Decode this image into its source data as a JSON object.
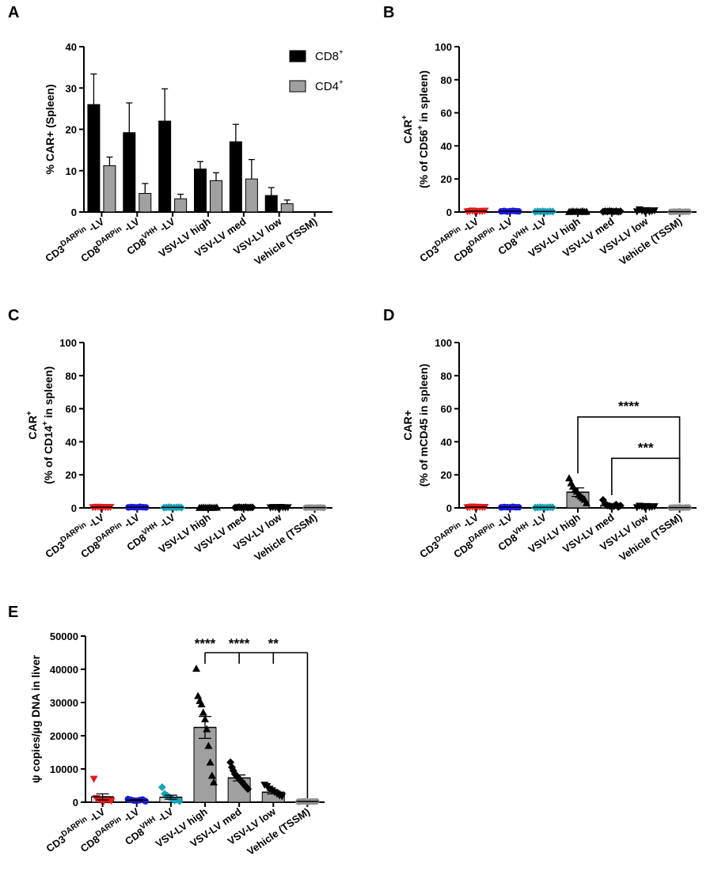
{
  "chart_data": [
    {
      "panel": "A",
      "type": "bar",
      "ylabel": "%  CAR+ (Spleen)",
      "ylim": [
        0,
        40
      ],
      "yticks": [
        0,
        10,
        20,
        30,
        40
      ],
      "categories": [
        {
          "base": "CD3",
          "sup": "DARPin",
          "rest": " -LV"
        },
        {
          "base": "CD8",
          "sup": "DARPin",
          "rest": " -LV"
        },
        {
          "base": "CD8",
          "sup": "VHH",
          "rest": " -LV"
        },
        {
          "base": "VSV-LV high",
          "sup": "",
          "rest": ""
        },
        {
          "base": "VSV-LV med",
          "sup": "",
          "rest": ""
        },
        {
          "base": "VSV-LV low",
          "sup": "",
          "rest": ""
        },
        {
          "base": "Vehicle (TSSM)",
          "sup": "",
          "rest": ""
        }
      ],
      "series": [
        {
          "name": "CD8",
          "name_sup": "+",
          "color": "#000000",
          "values": [
            26,
            19.2,
            22,
            10.4,
            17,
            4,
            0
          ],
          "errors": [
            7.4,
            7.2,
            7.8,
            1.8,
            4.2,
            1.9,
            0
          ]
        },
        {
          "name": "CD4",
          "name_sup": "+",
          "color": "#a0a0a0",
          "values": [
            11.2,
            4.5,
            3.2,
            7.6,
            8,
            2,
            0
          ],
          "errors": [
            2.1,
            2.4,
            1.1,
            1.9,
            4.7,
            0.9,
            0
          ]
        }
      ]
    },
    {
      "panel": "B",
      "type": "scatter",
      "ylabel_line1": "CAR",
      "ylabel_line1_sup": "+",
      "ylabel_line2_pre": "(% of  CD56",
      "ylabel_line2_sup": "+",
      "ylabel_line2_post": " in spleen)",
      "ylim": [
        0,
        100
      ],
      "yticks": [
        0,
        20,
        40,
        60,
        80,
        100
      ],
      "categories": [
        {
          "base": "CD3",
          "sup": "DARPin",
          "rest": " -LV"
        },
        {
          "base": "CD8",
          "sup": "DARPin",
          "rest": " -LV"
        },
        {
          "base": "CD8",
          "sup": "VHH",
          "rest": " -LV"
        },
        {
          "base": "VSV-LV high",
          "sup": "",
          "rest": ""
        },
        {
          "base": "VSV-LV med",
          "sup": "",
          "rest": ""
        },
        {
          "base": "VSV-LV low",
          "sup": "",
          "rest": ""
        },
        {
          "base": "Vehicle (TSSM)",
          "sup": "",
          "rest": ""
        }
      ],
      "groups": [
        {
          "mean": 0.5,
          "marker": "triangle-down",
          "color": "#e41a1c",
          "points": [
            0.3,
            0.5,
            0.8,
            0.2,
            0.6,
            0.4,
            0.5,
            0.7
          ]
        },
        {
          "mean": 0.5,
          "marker": "circle",
          "color": "#1a1adb",
          "points": [
            0.4,
            0.6,
            0.3,
            0.5,
            0.7,
            0.5,
            0.4
          ]
        },
        {
          "mean": 0.3,
          "marker": "diamond",
          "color": "#17a2b8",
          "points": [
            0.2,
            0.4,
            0.3,
            0.5,
            0.3,
            0.2,
            0.4,
            0.3
          ]
        },
        {
          "mean": 0.3,
          "marker": "triangle",
          "color": "#000000",
          "points": [
            0.1,
            0.3,
            0.5,
            0.2,
            0.4,
            0.2,
            0.3,
            0.6,
            0.1,
            0.3
          ]
        },
        {
          "mean": 0.4,
          "marker": "diamond",
          "color": "#000000",
          "points": [
            0.2,
            0.5,
            0.3,
            0.6,
            0.4,
            0.3,
            0.5,
            0.2,
            0.4
          ]
        },
        {
          "mean": 0.6,
          "marker": "triangle-down",
          "color": "#000000",
          "points": [
            0.3,
            1.5,
            0.8,
            0.5,
            1.0,
            0.2,
            0.6,
            0.9
          ]
        },
        {
          "mean": 0.2,
          "marker": "circle",
          "color": "#909090",
          "points": [
            0.1,
            0.2,
            0.2,
            0.3,
            0.1,
            0.2,
            0.2
          ]
        }
      ]
    },
    {
      "panel": "C",
      "type": "scatter",
      "ylabel_line1": "CAR",
      "ylabel_line1_sup": "+",
      "ylabel_line2_pre": "(% of  CD14",
      "ylabel_line2_sup": "+",
      "ylabel_line2_post": " in spleen)",
      "ylim": [
        0,
        100
      ],
      "yticks": [
        0,
        20,
        40,
        60,
        80,
        100
      ],
      "categories": [
        {
          "base": "CD3",
          "sup": "DARPin",
          "rest": " -LV"
        },
        {
          "base": "CD8",
          "sup": "DARPin",
          "rest": " -LV"
        },
        {
          "base": "CD8",
          "sup": "VHH",
          "rest": " -LV"
        },
        {
          "base": "VSV-LV high",
          "sup": "",
          "rest": ""
        },
        {
          "base": "VSV-LV med",
          "sup": "",
          "rest": ""
        },
        {
          "base": "VSV-LV low",
          "sup": "",
          "rest": ""
        },
        {
          "base": "Vehicle (TSSM)",
          "sup": "",
          "rest": ""
        }
      ],
      "groups": [
        {
          "mean": 0.4,
          "marker": "triangle-down",
          "color": "#e41a1c",
          "points": [
            0.3,
            0.4,
            0.6,
            0.2,
            0.5,
            0.4,
            0.3,
            0.5
          ]
        },
        {
          "mean": 0.4,
          "marker": "circle",
          "color": "#1a1adb",
          "points": [
            0.3,
            0.5,
            0.4,
            0.3,
            0.6,
            0.4,
            0.3
          ]
        },
        {
          "mean": 0.3,
          "marker": "diamond",
          "color": "#17a2b8",
          "points": [
            0.2,
            0.3,
            0.4,
            0.3,
            0.2,
            0.3,
            0.4,
            0.2
          ]
        },
        {
          "mean": 0.2,
          "marker": "triangle",
          "color": "#000000",
          "points": [
            0.1,
            0.2,
            0.3,
            0.2,
            0.1,
            0.3,
            0.2,
            0.1,
            0.2,
            0.3
          ]
        },
        {
          "mean": 0.3,
          "marker": "diamond",
          "color": "#000000",
          "points": [
            0.2,
            0.3,
            0.4,
            0.2,
            0.3,
            0.4,
            0.2,
            0.3,
            0.3
          ]
        },
        {
          "mean": 0.3,
          "marker": "triangle-down",
          "color": "#000000",
          "points": [
            0.2,
            0.4,
            0.3,
            0.2,
            0.5,
            0.3,
            0.2,
            0.3
          ]
        },
        {
          "mean": 0.2,
          "marker": "circle",
          "color": "#909090",
          "points": [
            0.1,
            0.2,
            0.2,
            0.1,
            0.2,
            0.2,
            0.1
          ]
        }
      ]
    },
    {
      "panel": "D",
      "type": "bar-scatter",
      "ylabel_line1": "CAR+",
      "ylabel_line2": "(% of mCD45 in spleen)",
      "ylim": [
        0,
        100
      ],
      "yticks": [
        0,
        20,
        40,
        60,
        80,
        100
      ],
      "categories": [
        {
          "base": "CD3",
          "sup": "DARPin",
          "rest": " -LV"
        },
        {
          "base": "CD8",
          "sup": "DARPin",
          "rest": " -LV"
        },
        {
          "base": "CD8",
          "sup": "VHH",
          "rest": " -LV"
        },
        {
          "base": "VSV-LV high",
          "sup": "",
          "rest": ""
        },
        {
          "base": "VSV-LV med",
          "sup": "",
          "rest": ""
        },
        {
          "base": "VSV-LV low",
          "sup": "",
          "rest": ""
        },
        {
          "base": "Vehicle (TSSM)",
          "sup": "",
          "rest": ""
        }
      ],
      "groups": [
        {
          "mean": 0.5,
          "marker": "triangle-down",
          "color": "#e41a1c",
          "points": [
            0.3,
            0.5,
            0.7,
            0.4,
            0.6,
            0.5,
            0.4,
            0.5
          ]
        },
        {
          "mean": 0.4,
          "marker": "circle",
          "color": "#1a1adb",
          "points": [
            0.3,
            0.5,
            0.4,
            0.3,
            0.6,
            0.4,
            0.4
          ]
        },
        {
          "mean": 0.3,
          "marker": "diamond",
          "color": "#17a2b8",
          "points": [
            0.2,
            0.3,
            0.4,
            0.3,
            0.2,
            0.3,
            0.4,
            0.3
          ]
        },
        {
          "mean": 9.5,
          "bar": true,
          "bar_color": "#a0a0a0",
          "error": 2.6,
          "marker": "triangle",
          "color": "#000000",
          "points": [
            18,
            15,
            13,
            11,
            10,
            8,
            7,
            6,
            5,
            3
          ]
        },
        {
          "mean": 1.6,
          "bar": true,
          "bar_color": "#a0a0a0",
          "error": 0.5,
          "marker": "diamond",
          "color": "#000000",
          "points": [
            4.8,
            2.5,
            1.5,
            1.2,
            0.8,
            1.0,
            2.0,
            0.6,
            1.4
          ]
        },
        {
          "mean": 0.7,
          "marker": "triangle-down",
          "color": "#000000",
          "points": [
            0.3,
            1.2,
            0.8,
            0.5,
            1.0,
            0.4,
            0.6,
            0.9
          ]
        },
        {
          "mean": 0.2,
          "marker": "circle",
          "color": "#909090",
          "points": [
            0.1,
            0.2,
            0.2,
            0.3,
            0.1,
            0.2,
            0.2
          ]
        }
      ],
      "significance": [
        {
          "from": 3,
          "to": 6,
          "at": 55,
          "label": "****"
        },
        {
          "from": 4,
          "to": 6,
          "at": 30,
          "label": "***"
        }
      ]
    },
    {
      "panel": "E",
      "type": "bar-scatter",
      "ylabel": "ψ copies/µg DNA in liver",
      "ylim": [
        0,
        50000
      ],
      "yticks": [
        0,
        10000,
        20000,
        30000,
        40000,
        50000
      ],
      "categories": [
        {
          "base": "CD3",
          "sup": "DARPin",
          "rest": " -LV"
        },
        {
          "base": "CD8",
          "sup": "DARPin",
          "rest": " -LV"
        },
        {
          "base": "CD8",
          "sup": "VHH",
          "rest": " -LV"
        },
        {
          "base": "VSV-LV high",
          "sup": "",
          "rest": ""
        },
        {
          "base": "VSV-LV med",
          "sup": "",
          "rest": ""
        },
        {
          "base": "VSV-LV low",
          "sup": "",
          "rest": ""
        },
        {
          "base": "Vehicle (TSSM)",
          "sup": "",
          "rest": ""
        }
      ],
      "groups": [
        {
          "mean": 1600,
          "bar": true,
          "bar_color": "#d9d9d9",
          "error": 900,
          "marker": "triangle-down",
          "color": "#e41a1c",
          "points": [
            7000,
            1200,
            800,
            500,
            300,
            900,
            600,
            400
          ]
        },
        {
          "mean": 600,
          "bar": true,
          "bar_color": "#d9d9d9",
          "error": 200,
          "marker": "circle",
          "color": "#1a1adb",
          "points": [
            900,
            700,
            500,
            400,
            600,
            800,
            300
          ]
        },
        {
          "mean": 1500,
          "bar": true,
          "bar_color": "#d9d9d9",
          "error": 600,
          "marker": "diamond",
          "color": "#17a2b8",
          "points": [
            4500,
            2500,
            2000,
            1500,
            1000,
            500,
            800,
            300
          ]
        },
        {
          "mean": 22500,
          "bar": true,
          "bar_color": "#a0a0a0",
          "error": 3300,
          "marker": "triangle",
          "color": "#000000",
          "points": [
            40200,
            32000,
            30500,
            29500,
            27000,
            25000,
            22000,
            17000,
            12000,
            8000,
            6000
          ]
        },
        {
          "mean": 7300,
          "bar": true,
          "bar_color": "#a0a0a0",
          "error": 900,
          "marker": "diamond",
          "color": "#000000",
          "points": [
            12000,
            10500,
            9500,
            8500,
            8000,
            7500,
            7000,
            6500,
            6000,
            5500,
            5000,
            4500,
            4000
          ]
        },
        {
          "mean": 3000,
          "bar": true,
          "bar_color": "#a0a0a0",
          "error": 500,
          "marker": "triangle-down",
          "color": "#000000",
          "points": [
            5200,
            4800,
            4000,
            3500,
            3000,
            2500,
            2000,
            1800
          ]
        },
        {
          "mean": 200,
          "marker": "circle",
          "color": "#909090",
          "points": [
            150,
            200,
            250,
            100,
            200,
            180,
            220
          ]
        }
      ],
      "significance_bracket": {
        "at": 45000,
        "to": 6,
        "drops": [
          3,
          4,
          5
        ],
        "labels": [
          "****",
          "****",
          "**"
        ]
      }
    }
  ]
}
